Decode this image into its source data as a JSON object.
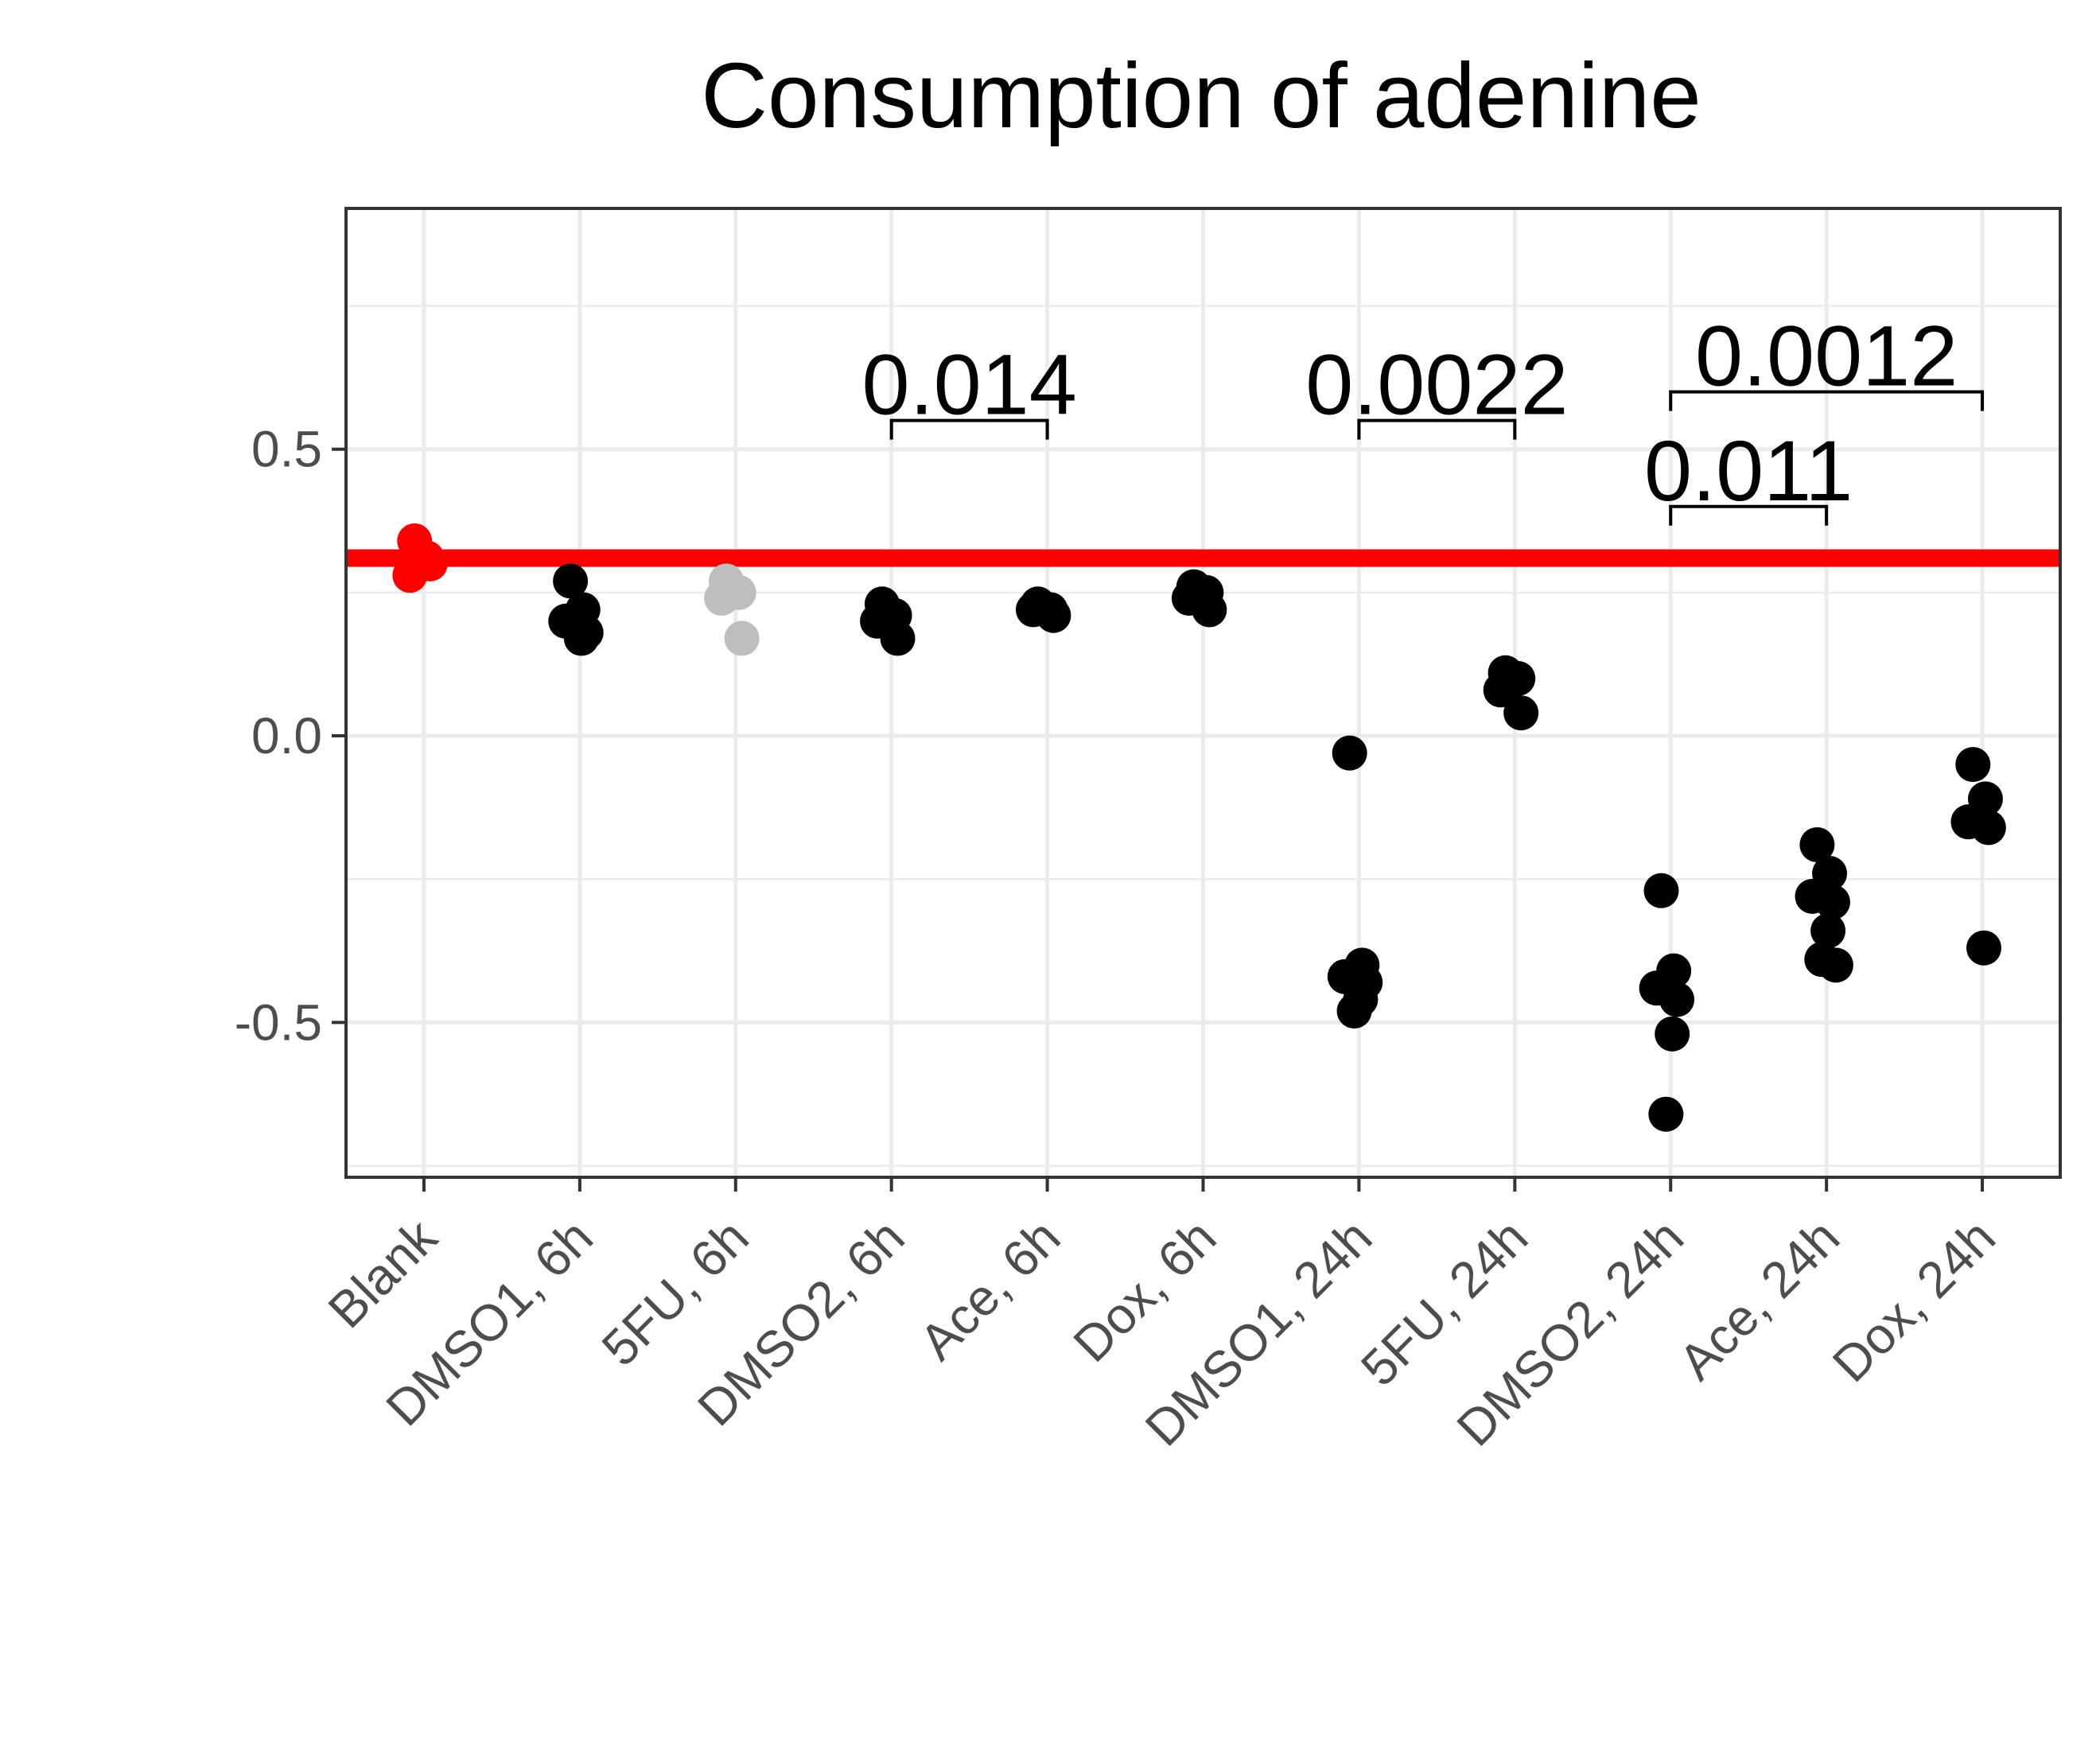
{
  "chart_data": {
    "type": "scatter",
    "title": "Consumption of adenine",
    "xlabel": "",
    "ylabel": "",
    "ylim": [
      -0.77,
      0.92
    ],
    "yticks": [
      {
        "value": 0.5,
        "label": "0.5"
      },
      {
        "value": 0.0,
        "label": "0.0"
      },
      {
        "value": -0.5,
        "label": "-0.5"
      }
    ],
    "grid": true,
    "legend": "none",
    "categories": [
      "Blank",
      "DMSO1, 6h",
      "5FU, 6h",
      "DMSO2, 6h",
      "Ace, 6h",
      "Dox, 6h",
      "DMSO1, 24h",
      "5FU, 24h",
      "DMSO2, 24h",
      "Ace, 24h",
      "Dox, 24h"
    ],
    "reference_line": {
      "value": 0.31,
      "color": "#ff0000"
    },
    "colors": {
      "default": "#000000",
      "blank": "#ff0000",
      "muted": "#bebebe",
      "grid": "#ebebeb",
      "border": "#333333"
    },
    "groups": [
      {
        "category": "Blank",
        "color": "#ff0000",
        "values": [
          0.34,
          0.31,
          0.28,
          0.3
        ]
      },
      {
        "category": "DMSO1, 6h",
        "color": "#000000",
        "values": [
          0.27,
          0.22,
          0.2,
          0.18,
          0.17
        ]
      },
      {
        "category": "5FU, 6h",
        "color": "#bebebe",
        "values": [
          0.27,
          0.25,
          0.24,
          0.17
        ]
      },
      {
        "category": "DMSO2, 6h",
        "color": "#000000",
        "values": [
          0.23,
          0.21,
          0.2,
          0.17
        ]
      },
      {
        "category": "Ace, 6h",
        "color": "#000000",
        "values": [
          0.23,
          0.22,
          0.22,
          0.21
        ]
      },
      {
        "category": "Dox, 6h",
        "color": "#000000",
        "values": [
          0.26,
          0.25,
          0.24,
          0.22
        ]
      },
      {
        "category": "DMSO1, 24h",
        "color": "#000000",
        "values": [
          -0.03,
          -0.4,
          -0.42,
          -0.43,
          -0.46,
          -0.48
        ]
      },
      {
        "category": "5FU, 24h",
        "color": "#000000",
        "values": [
          0.11,
          0.1,
          0.08,
          0.04
        ]
      },
      {
        "category": "DMSO2, 24h",
        "color": "#000000",
        "values": [
          -0.27,
          -0.41,
          -0.44,
          -0.46,
          -0.52,
          -0.66
        ]
      },
      {
        "category": "Ace, 24h",
        "color": "#000000",
        "values": [
          -0.19,
          -0.24,
          -0.28,
          -0.29,
          -0.34,
          -0.39,
          -0.4
        ]
      },
      {
        "category": "Dox, 24h",
        "color": "#000000",
        "values": [
          -0.05,
          -0.11,
          -0.15,
          -0.16,
          -0.37
        ]
      }
    ],
    "annotations": [
      {
        "label": "0.014",
        "from": "DMSO2, 6h",
        "to": "Ace, 6h",
        "y": 0.55
      },
      {
        "label": "0.0022",
        "from": "DMSO1, 24h",
        "to": "5FU, 24h",
        "y": 0.55
      },
      {
        "label": "0.011",
        "from": "DMSO2, 24h",
        "to": "Ace, 24h",
        "y": 0.4
      },
      {
        "label": "0.0012",
        "from": "DMSO2, 24h",
        "to": "Dox, 24h",
        "y": 0.6
      }
    ]
  }
}
